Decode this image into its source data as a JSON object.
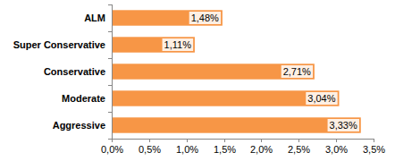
{
  "chart_data": {
    "type": "bar",
    "orientation": "horizontal",
    "categories": [
      "ALM",
      "Super Conservative",
      "Conservative",
      "Moderate",
      "Aggressive"
    ],
    "values": [
      1.48,
      1.11,
      2.71,
      3.04,
      3.33
    ],
    "value_labels": [
      "1,48%",
      "1,11%",
      "2,71%",
      "3,04%",
      "3,33%"
    ],
    "color": "#f79646",
    "xlim": [
      0,
      3.5
    ],
    "xticks": [
      {
        "value": 0,
        "label": "0,0%"
      },
      {
        "value": 0.5,
        "label": "0,5%"
      },
      {
        "value": 1,
        "label": "1,0%"
      },
      {
        "value": 1.5,
        "label": "1,5%"
      },
      {
        "value": 2,
        "label": "2,0%"
      },
      {
        "value": 2.5,
        "label": "2,5%"
      },
      {
        "value": 3,
        "label": "3,0%"
      },
      {
        "value": 3.5,
        "label": "3,5%"
      }
    ],
    "grid": false,
    "data_labels": true
  }
}
